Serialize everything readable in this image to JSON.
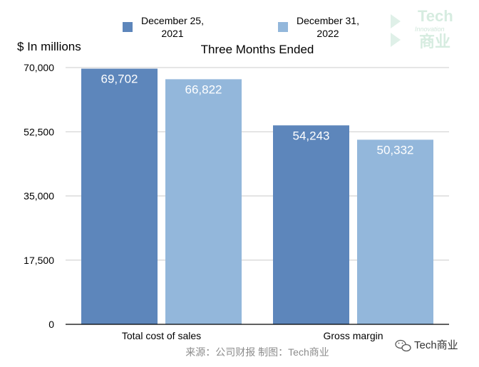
{
  "chart_data": {
    "type": "bar",
    "title": "Three Months Ended",
    "ylabel": "$ In millions",
    "xlabel": "",
    "categories": [
      "Total cost of sales",
      "Gross margin"
    ],
    "series": [
      {
        "name": "December 25, 2021",
        "name_lines": [
          "December 25,",
          "2021"
        ],
        "values": [
          69702,
          54243
        ],
        "labels": [
          "69,702",
          "54,243"
        ],
        "color": "#5d86bb"
      },
      {
        "name": "December 31, 2022",
        "name_lines": [
          "December 31,",
          "2022"
        ],
        "values": [
          66822,
          50332
        ],
        "labels": [
          "66,822",
          "50,332"
        ],
        "color": "#93b7db"
      }
    ],
    "ylim": [
      0,
      70000
    ],
    "yticks": [
      0,
      17500,
      35000,
      52500,
      70000
    ],
    "ytick_labels": [
      "0",
      "17,500",
      "35,000",
      "52,500",
      "70,000"
    ],
    "grid": true,
    "legend_position": "top"
  },
  "source": "来源：公司财报 制图：Tech商业",
  "watermark": {
    "line1": "Tech",
    "line2": "Innovation",
    "line3": "商业"
  },
  "wechat_account": "Tech商业",
  "colors": {
    "grid": "#cccccc",
    "axis": "#000000",
    "source": "#8c8c8c"
  }
}
